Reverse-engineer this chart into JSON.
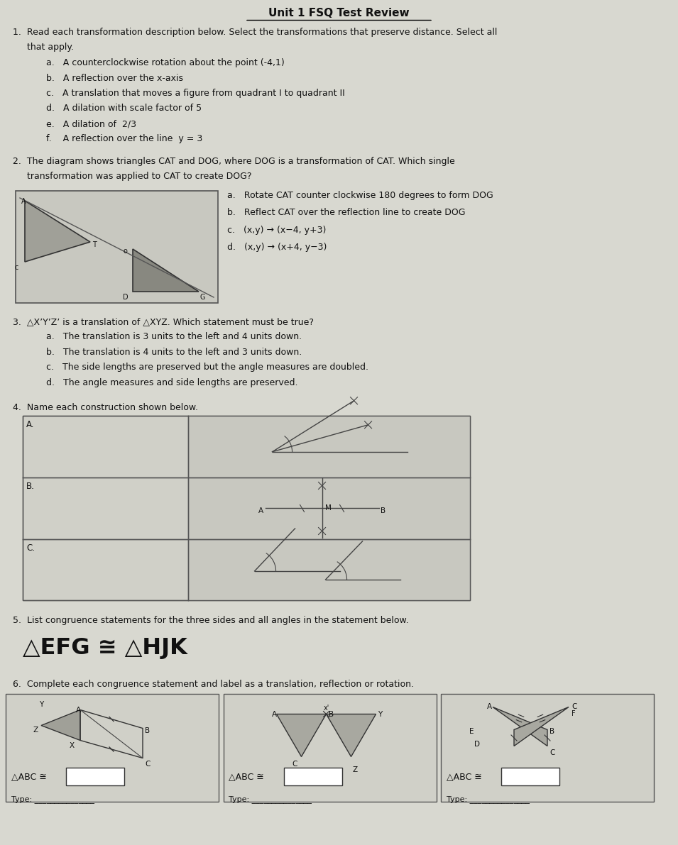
{
  "title": "Unit 1 FSQ Test Review",
  "bg_color": "#d8d8d0",
  "text_color": "#111111",
  "q1_items": [
    "a.   A counterclockwise rotation about the point (-4,1)",
    "b.   A reflection over the x-axis",
    "c.   A translation that moves a figure from quadrant I to quadrant II",
    "d.   A dilation with scale factor of 5",
    "e.   A dilation of  2/3",
    "f.    A reflection over the line  y = 3"
  ],
  "q2_items": [
    "a.   Rotate CAT counter clockwise 180 degrees to form DOG",
    "b.   Reflect CAT over the reflection line to create DOG",
    "c.   (x,y) → (x−4, y+3)",
    "d.   (x,y) → (x+4, y−3)"
  ],
  "q3_items": [
    "a.   The translation is 3 units to the left and 4 units down.",
    "b.   The translation is 4 units to the left and 3 units down.",
    "c.   The side lengths are preserved but the angle measures are doubled.",
    "d.   The angle measures and side lengths are preserved."
  ],
  "q5_big": "△EFG ≅ △HJK"
}
